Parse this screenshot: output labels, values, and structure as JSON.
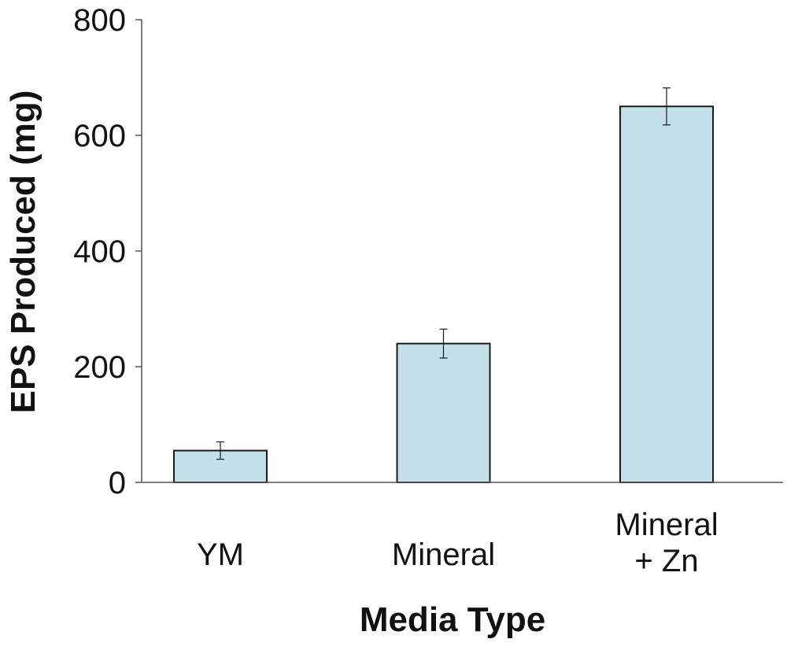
{
  "chart_data": {
    "type": "bar",
    "categories": [
      [
        "YM"
      ],
      [
        "Mineral"
      ],
      [
        "Mineral",
        "+ Zn"
      ]
    ],
    "values": [
      55,
      240,
      650
    ],
    "errors": [
      15,
      25,
      32
    ],
    "xlabel": "Media Type",
    "ylabel": "EPS Produced (mg)",
    "ylim": [
      0,
      800
    ],
    "yticks": [
      0,
      200,
      400,
      600,
      800
    ],
    "bar_color": "#c2e0ea",
    "bar_edge_color": "#1a1a1a",
    "grid": false
  }
}
